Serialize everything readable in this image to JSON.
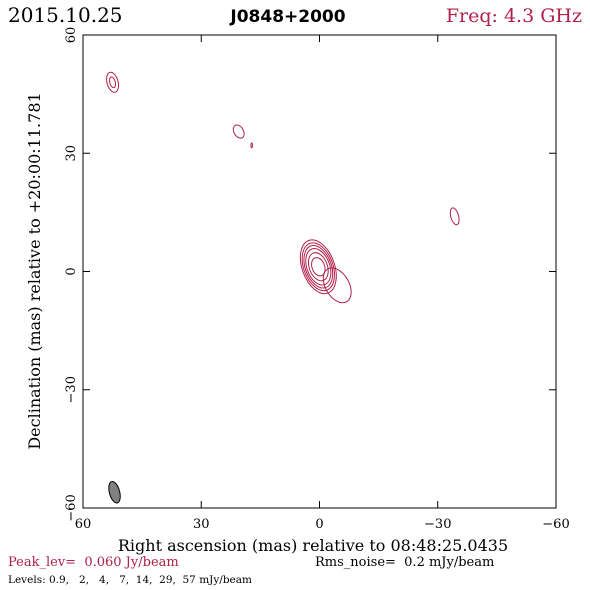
{
  "header": {
    "date": "2015.10.25",
    "source": "J0848+2000",
    "freq": "Freq: 4.3 GHz"
  },
  "footer": {
    "peak": "Peak_lev=  0.060 Jy/beam",
    "rms": "Rms_noise=  0.2 mJy/beam",
    "levels": "Levels: 0.9,   2,   4,   7,  14,  29,  57 mJy/beam"
  },
  "colors": {
    "contour": "#b0204a",
    "axis": "#000000",
    "beam_fill": "#808080"
  },
  "chart_data": {
    "type": "contour",
    "xlabel": "Right ascension (mas) relative to 08:48:25.0435",
    "ylabel": "Declination (mas) relative to +20:00:11.781",
    "xlim": [
      60,
      -60
    ],
    "ylim": [
      -60,
      60
    ],
    "xticks": [
      60,
      30,
      0,
      -30,
      -60
    ],
    "yticks": [
      60,
      30,
      0,
      -30,
      -60
    ],
    "xtick_labels": [
      "60",
      "30",
      "0",
      "−30",
      "−60"
    ],
    "ytick_labels": [
      "60",
      "30",
      "0",
      "−30",
      "−60"
    ],
    "levels_mjy": [
      0.9,
      2,
      4,
      7,
      14,
      29,
      57
    ],
    "peak_jy": 0.06,
    "rms_mjy": 0.2,
    "components": [
      {
        "name": "core",
        "x": 0.3,
        "y": 1.2,
        "rx": [
          1.6,
          2.3,
          2.9,
          3.3,
          3.7,
          4.1
        ],
        "ry": [
          2.4,
          3.7,
          4.8,
          5.6,
          6.3,
          7.1
        ],
        "angle": -20
      },
      {
        "name": "jet",
        "x": -4.5,
        "y": -3.5,
        "rx": [
          3.0
        ],
        "ry": [
          4.8
        ],
        "angle": -30
      },
      {
        "name": "isle-upper-left",
        "x": 52.5,
        "y": 48.0,
        "rx": [
          0.7,
          1.4
        ],
        "ry": [
          1.4,
          2.6
        ],
        "angle": -15
      },
      {
        "name": "isle-mid",
        "x": 20.5,
        "y": 35.5,
        "rx": [
          1.2
        ],
        "ry": [
          1.8
        ],
        "angle": -30
      },
      {
        "name": "isle-dot",
        "x": 17.2,
        "y": 32.0,
        "rx": [
          0.2
        ],
        "ry": [
          0.6
        ],
        "angle": 0
      },
      {
        "name": "isle-right",
        "x": -34.3,
        "y": 14.0,
        "rx": [
          1.0
        ],
        "ry": [
          2.2
        ],
        "angle": -15
      }
    ],
    "beam": {
      "x": 52.0,
      "y": -56.0,
      "rx": 1.3,
      "ry": 2.8,
      "angle": -15
    }
  }
}
